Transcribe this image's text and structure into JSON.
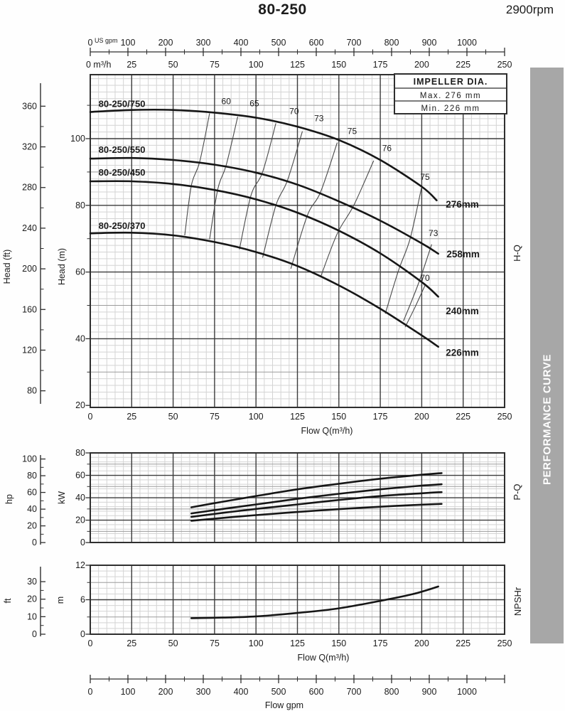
{
  "header": {
    "title": "80-250",
    "rpm": "2900rpm"
  },
  "sidebar": {
    "label": "PERFORMANCE CURVE"
  },
  "impeller_box": {
    "title": "IMPELLER DIA.",
    "max_row": "Max. 276 mm",
    "min_row": "Min. 226 mm"
  },
  "side_labels": {
    "hq": "H-Q",
    "pq": "P-Q",
    "npshr": "NPSHr"
  },
  "colors": {
    "grid_minor": "#d4d4d4",
    "grid_mid": "#9b9b9b",
    "grid_major": "#3c3c3c",
    "border": "#2f2f2f",
    "curve": "#161616",
    "eff_line": "#4a4a4a",
    "text": "#1c1c1c",
    "sidebar_bg": "#a7a7a7",
    "sidebar_text": "#ffffff",
    "box_bg": "#ffffff"
  },
  "top_axis": {
    "zero_label": "0",
    "unit": "US gpm",
    "gpm_ticks": [
      100,
      200,
      300,
      400,
      500,
      600,
      700,
      800,
      900,
      1000
    ],
    "m3h_zero": "0 m³/h",
    "m3h_ticks": [
      25,
      50,
      75,
      100,
      125,
      150,
      175,
      200,
      225,
      250
    ]
  },
  "bottom_axis": {
    "zero_label": "0",
    "gpm_ticks": [
      100,
      200,
      300,
      400,
      500,
      600,
      700,
      800,
      900,
      1000
    ],
    "label": "Flow gpm"
  },
  "chart_data": [
    {
      "id": "hq",
      "type": "line",
      "title": "H-Q (Head vs Flow)",
      "x_axis": {
        "label": "Flow Q(m³/h)",
        "min": 0,
        "max": 250,
        "major_step": 25,
        "minor_step": 5,
        "tick_labels": [
          0,
          25,
          50,
          75,
          100,
          125,
          150,
          175,
          200,
          225,
          250
        ]
      },
      "y_axis": {
        "label": "Head (m)",
        "min": 20,
        "max": 119,
        "minor_step": 2,
        "mid_ticks": [
          30,
          50,
          70,
          90,
          110
        ],
        "major_ticks": [
          40,
          60,
          80,
          100
        ],
        "labels": [
          100,
          80,
          60,
          40,
          20
        ],
        "border_minor_ticks": [
          30,
          50,
          70,
          90,
          110
        ]
      },
      "y2_axis": {
        "label": "Head (ft)",
        "tick_min": 80,
        "tick_max": 360,
        "tick_step": 20,
        "label_ticks": [
          360,
          320,
          280,
          240,
          200,
          160,
          120,
          80
        ]
      },
      "series": [
        {
          "model": "80-250/750",
          "dia": "276mm",
          "label_pos": [
            5,
            109.5
          ],
          "dia_label_pos": [
            214.5,
            79.3
          ],
          "points": [
            [
              0,
              108
            ],
            [
              25,
              108.6
            ],
            [
              50,
              108.6
            ],
            [
              75,
              107.8
            ],
            [
              100,
              106.3
            ],
            [
              125,
              103.6
            ],
            [
              150,
              99.6
            ],
            [
              175,
              93.6
            ],
            [
              200,
              85.6
            ],
            [
              209,
              81.5
            ]
          ]
        },
        {
          "model": "80-250/550",
          "dia": "258mm",
          "label_pos": [
            5,
            95.7
          ],
          "dia_label_pos": [
            215,
            64.4
          ],
          "points": [
            [
              0,
              94
            ],
            [
              25,
              94.2
            ],
            [
              50,
              93.6
            ],
            [
              75,
              92.2
            ],
            [
              100,
              89.8
            ],
            [
              125,
              86.2
            ],
            [
              150,
              81.2
            ],
            [
              175,
              75.4
            ],
            [
              200,
              68.6
            ],
            [
              210,
              65.5
            ]
          ]
        },
        {
          "model": "80-250/450",
          "dia": "240mm",
          "label_pos": [
            5,
            88.9
          ],
          "dia_label_pos": [
            214.5,
            47.3
          ],
          "points": [
            [
              0,
              87.2
            ],
            [
              25,
              87.2
            ],
            [
              50,
              86.4
            ],
            [
              75,
              84.6
            ],
            [
              100,
              81.8
            ],
            [
              125,
              77.8
            ],
            [
              150,
              72.4
            ],
            [
              175,
              65.6
            ],
            [
              200,
              57
            ],
            [
              210,
              52.6
            ]
          ]
        },
        {
          "model": "80-250/370",
          "dia": "226mm",
          "label_pos": [
            5,
            72.9
          ],
          "dia_label_pos": [
            214.5,
            34.9
          ],
          "points": [
            [
              0,
              71.6
            ],
            [
              25,
              71.8
            ],
            [
              50,
              71
            ],
            [
              75,
              69
            ],
            [
              100,
              66
            ],
            [
              125,
              61.8
            ],
            [
              150,
              56
            ],
            [
              175,
              49
            ],
            [
              200,
              41
            ],
            [
              210,
              37.6
            ]
          ]
        }
      ],
      "efficiency_lines": [
        {
          "label": "60",
          "label_pos": [
            82,
            110.3
          ],
          "points": [
            [
              72,
              107.6
            ],
            [
              66,
              93
            ],
            [
              61,
              86
            ],
            [
              57,
              71
            ]
          ]
        },
        {
          "label": "65",
          "label_pos": [
            99,
            109.7
          ],
          "points": [
            [
              89,
              106.6
            ],
            [
              82,
              92
            ],
            [
              77,
              85
            ],
            [
              72,
              69.8
            ]
          ]
        },
        {
          "label": "70",
          "label_pos": [
            123,
            107.4
          ],
          "points": [
            [
              112,
              104.6
            ],
            [
              104,
              90
            ],
            [
              97,
              83
            ],
            [
              90,
              66.8
            ]
          ]
        },
        {
          "label": "73",
          "label_pos": [
            138,
            105.2
          ],
          "points": [
            [
              128,
              102.2
            ],
            [
              119,
              87.5
            ],
            [
              112,
              80
            ],
            [
              104,
              64.3
            ]
          ]
        },
        {
          "label": "75",
          "label_pos": [
            158,
            101.4
          ],
          "points": [
            [
              149,
              98.8
            ],
            [
              139,
              84
            ],
            [
              131,
              77
            ],
            [
              121,
              61
            ]
          ]
        },
        {
          "label": "76",
          "label_pos": [
            179,
            96.3
          ],
          "points": [
            [
              171,
              93.4
            ],
            [
              159,
              80
            ],
            [
              149,
              71.5
            ],
            [
              139,
              58.5
            ]
          ]
        },
        {
          "label": "75",
          "label_pos": [
            202,
            87.6
          ],
          "points": [
            [
              200,
              85.6
            ],
            [
              193,
              70
            ],
            [
              186,
              60.5
            ],
            [
              178,
              47.5
            ]
          ]
        },
        {
          "label": "73",
          "label_pos": [
            207,
            70.8
          ],
          "points": [
            [
              206,
              68.3
            ],
            [
              198,
              56.5
            ],
            [
              189,
              45.3
            ]
          ]
        },
        {
          "label": "70",
          "label_pos": [
            202,
            57.4
          ],
          "points": [
            [
              202,
              56
            ],
            [
              196,
              49.5
            ],
            [
              190,
              43.5
            ]
          ]
        }
      ]
    },
    {
      "id": "pq",
      "type": "line",
      "title": "P-Q (Power vs Flow)",
      "x_axis": {
        "label": "",
        "min": 0,
        "max": 250,
        "major_step": 25,
        "minor_step": 5,
        "tick_labels": []
      },
      "y_axis": {
        "label": "kW",
        "min": 0,
        "max": 80,
        "minor_step": 4,
        "mid_ticks": [
          10,
          30,
          50,
          70
        ],
        "major_ticks": [
          20,
          40,
          60
        ],
        "labels": [
          80,
          60,
          40,
          20,
          0
        ],
        "border_minor_ticks": [
          10,
          30,
          50,
          70
        ]
      },
      "y2_axis": {
        "label": "hp",
        "tick_min": 0,
        "tick_max": 100,
        "tick_step": 10,
        "label_ticks": [
          100,
          80,
          60,
          40,
          20,
          0
        ]
      },
      "series": [
        {
          "dia": "276mm",
          "label_pos": [
            214.5,
            61.5
          ],
          "points": [
            [
              61,
              31.5
            ],
            [
              80,
              36.5
            ],
            [
              100,
              41.5
            ],
            [
              125,
              47.5
            ],
            [
              150,
              52.5
            ],
            [
              175,
              57
            ],
            [
              200,
              60.5
            ],
            [
              212,
              62
            ]
          ]
        },
        {
          "dia": "258mm",
          "label_pos": [
            214.5,
            51.5
          ],
          "points": [
            [
              61,
              26
            ],
            [
              80,
              30
            ],
            [
              100,
              34
            ],
            [
              125,
              39
            ],
            [
              150,
              43.5
            ],
            [
              175,
              47.5
            ],
            [
              200,
              50.8
            ],
            [
              212,
              52
            ]
          ]
        },
        {
          "dia": "240mm",
          "label_pos": [
            214.5,
            44
          ],
          "points": [
            [
              61,
              23
            ],
            [
              80,
              26.5
            ],
            [
              100,
              30
            ],
            [
              125,
              34
            ],
            [
              150,
              38
            ],
            [
              175,
              41.5
            ],
            [
              200,
              44
            ],
            [
              212,
              45
            ]
          ]
        },
        {
          "dia": "226mm",
          "label_pos": [
            214.5,
            33.8
          ],
          "points": [
            [
              61,
              19.5
            ],
            [
              80,
              22
            ],
            [
              100,
              24.5
            ],
            [
              125,
              27.3
            ],
            [
              150,
              29.8
            ],
            [
              175,
              32
            ],
            [
              200,
              33.8
            ],
            [
              212,
              34.5
            ]
          ]
        }
      ]
    },
    {
      "id": "npshr",
      "type": "line",
      "title": "NPSHr vs Flow",
      "x_axis": {
        "label": "Flow Q(m³/h)",
        "min": 0,
        "max": 250,
        "major_step": 25,
        "minor_step": 5,
        "tick_labels": [
          0,
          25,
          50,
          75,
          100,
          125,
          150,
          175,
          200,
          225,
          250
        ]
      },
      "y_axis": {
        "label": "m",
        "min": 0,
        "max": 12,
        "minor_step": 1,
        "mid_ticks": [
          3,
          9
        ],
        "major_ticks": [
          6
        ],
        "labels": [
          12,
          6,
          0
        ],
        "border_minor_ticks": [
          3,
          9
        ]
      },
      "y2_axis": {
        "label": "ft",
        "tick_min": 0,
        "tick_max": 30,
        "tick_step": 5,
        "label_ticks": [
          30,
          20,
          10,
          0
        ]
      },
      "series": [
        {
          "name": "NPSHr",
          "points": [
            [
              61,
              2.8
            ],
            [
              80,
              2.9
            ],
            [
              100,
              3.1
            ],
            [
              125,
              3.7
            ],
            [
              150,
              4.5
            ],
            [
              175,
              5.8
            ],
            [
              195,
              7.0
            ],
            [
              210,
              8.3
            ]
          ]
        }
      ]
    }
  ]
}
